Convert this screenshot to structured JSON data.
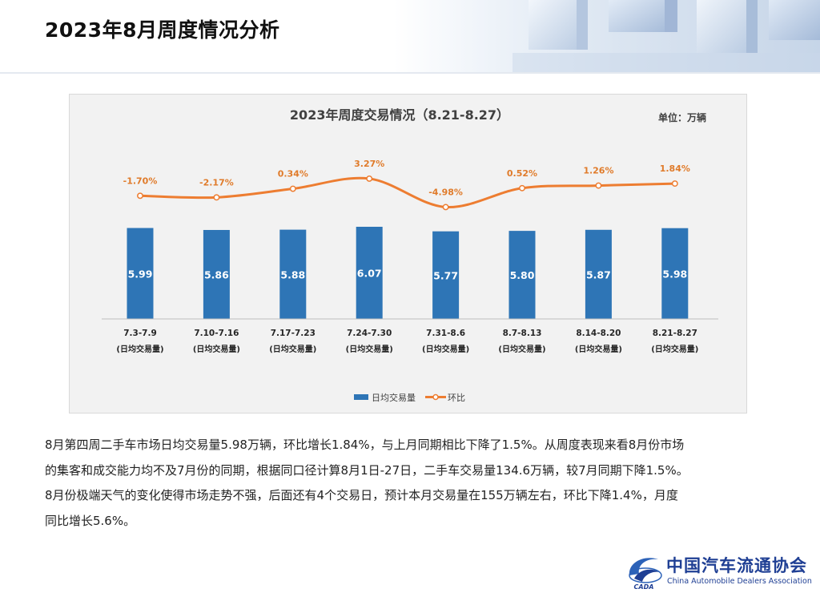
{
  "page": {
    "title": "2023年8月周度情况分析"
  },
  "chart_data": {
    "type": "bar",
    "title": "2023年周度交易情况（8.21-8.27）",
    "unit": "单位：万辆",
    "categories": [
      "7.3-7.9",
      "7.10-7.16",
      "7.17-7.23",
      "7.24-7.30",
      "7.31-8.6",
      "8.7-8.13",
      "8.14-8.20",
      "8.21-8.27"
    ],
    "category_sublabel": "(日均交易量)",
    "series": [
      {
        "name": "日均交易量",
        "kind": "bar",
        "color": "#2e75b6",
        "values": [
          5.99,
          5.86,
          5.88,
          6.07,
          5.77,
          5.8,
          5.87,
          5.98
        ],
        "labels": [
          "5.99",
          "5.86",
          "5.88",
          "6.07",
          "5.77",
          "5.80",
          "5.87",
          "5.98"
        ]
      },
      {
        "name": "环比",
        "kind": "line",
        "color": "#ed7d31",
        "values": [
          -1.7,
          -2.17,
          0.34,
          3.27,
          -4.98,
          0.52,
          1.26,
          1.84
        ],
        "labels": [
          "-1.70%",
          "-2.17%",
          "0.34%",
          "3.27%",
          "-4.98%",
          "0.52%",
          "1.26%",
          "1.84%"
        ]
      }
    ],
    "legend_position": "bottom",
    "grid": false
  },
  "body": {
    "lines": [
      "8月第四周二手车市场日均交易量5.98万辆，环比增长1.84%，与上月同期相比下降了1.5%。从周度表现来看8月份市场",
      "的集客和成交能力均不及7月份的同期，根据同口径计算8月1日-27日，二手车交易量134.6万辆，较7月同期下降1.5%。",
      "8月份极端天气的变化使得市场走势不强，后面还有4个交易日，预计本月交易量在155万辆左右，环比下降1.4%，月度",
      "同比增长5.6%。"
    ]
  },
  "logo": {
    "name_cn": "中国汽车流通协会",
    "name_en": "China Automobile Dealers Association",
    "mark_text": "CADA"
  }
}
